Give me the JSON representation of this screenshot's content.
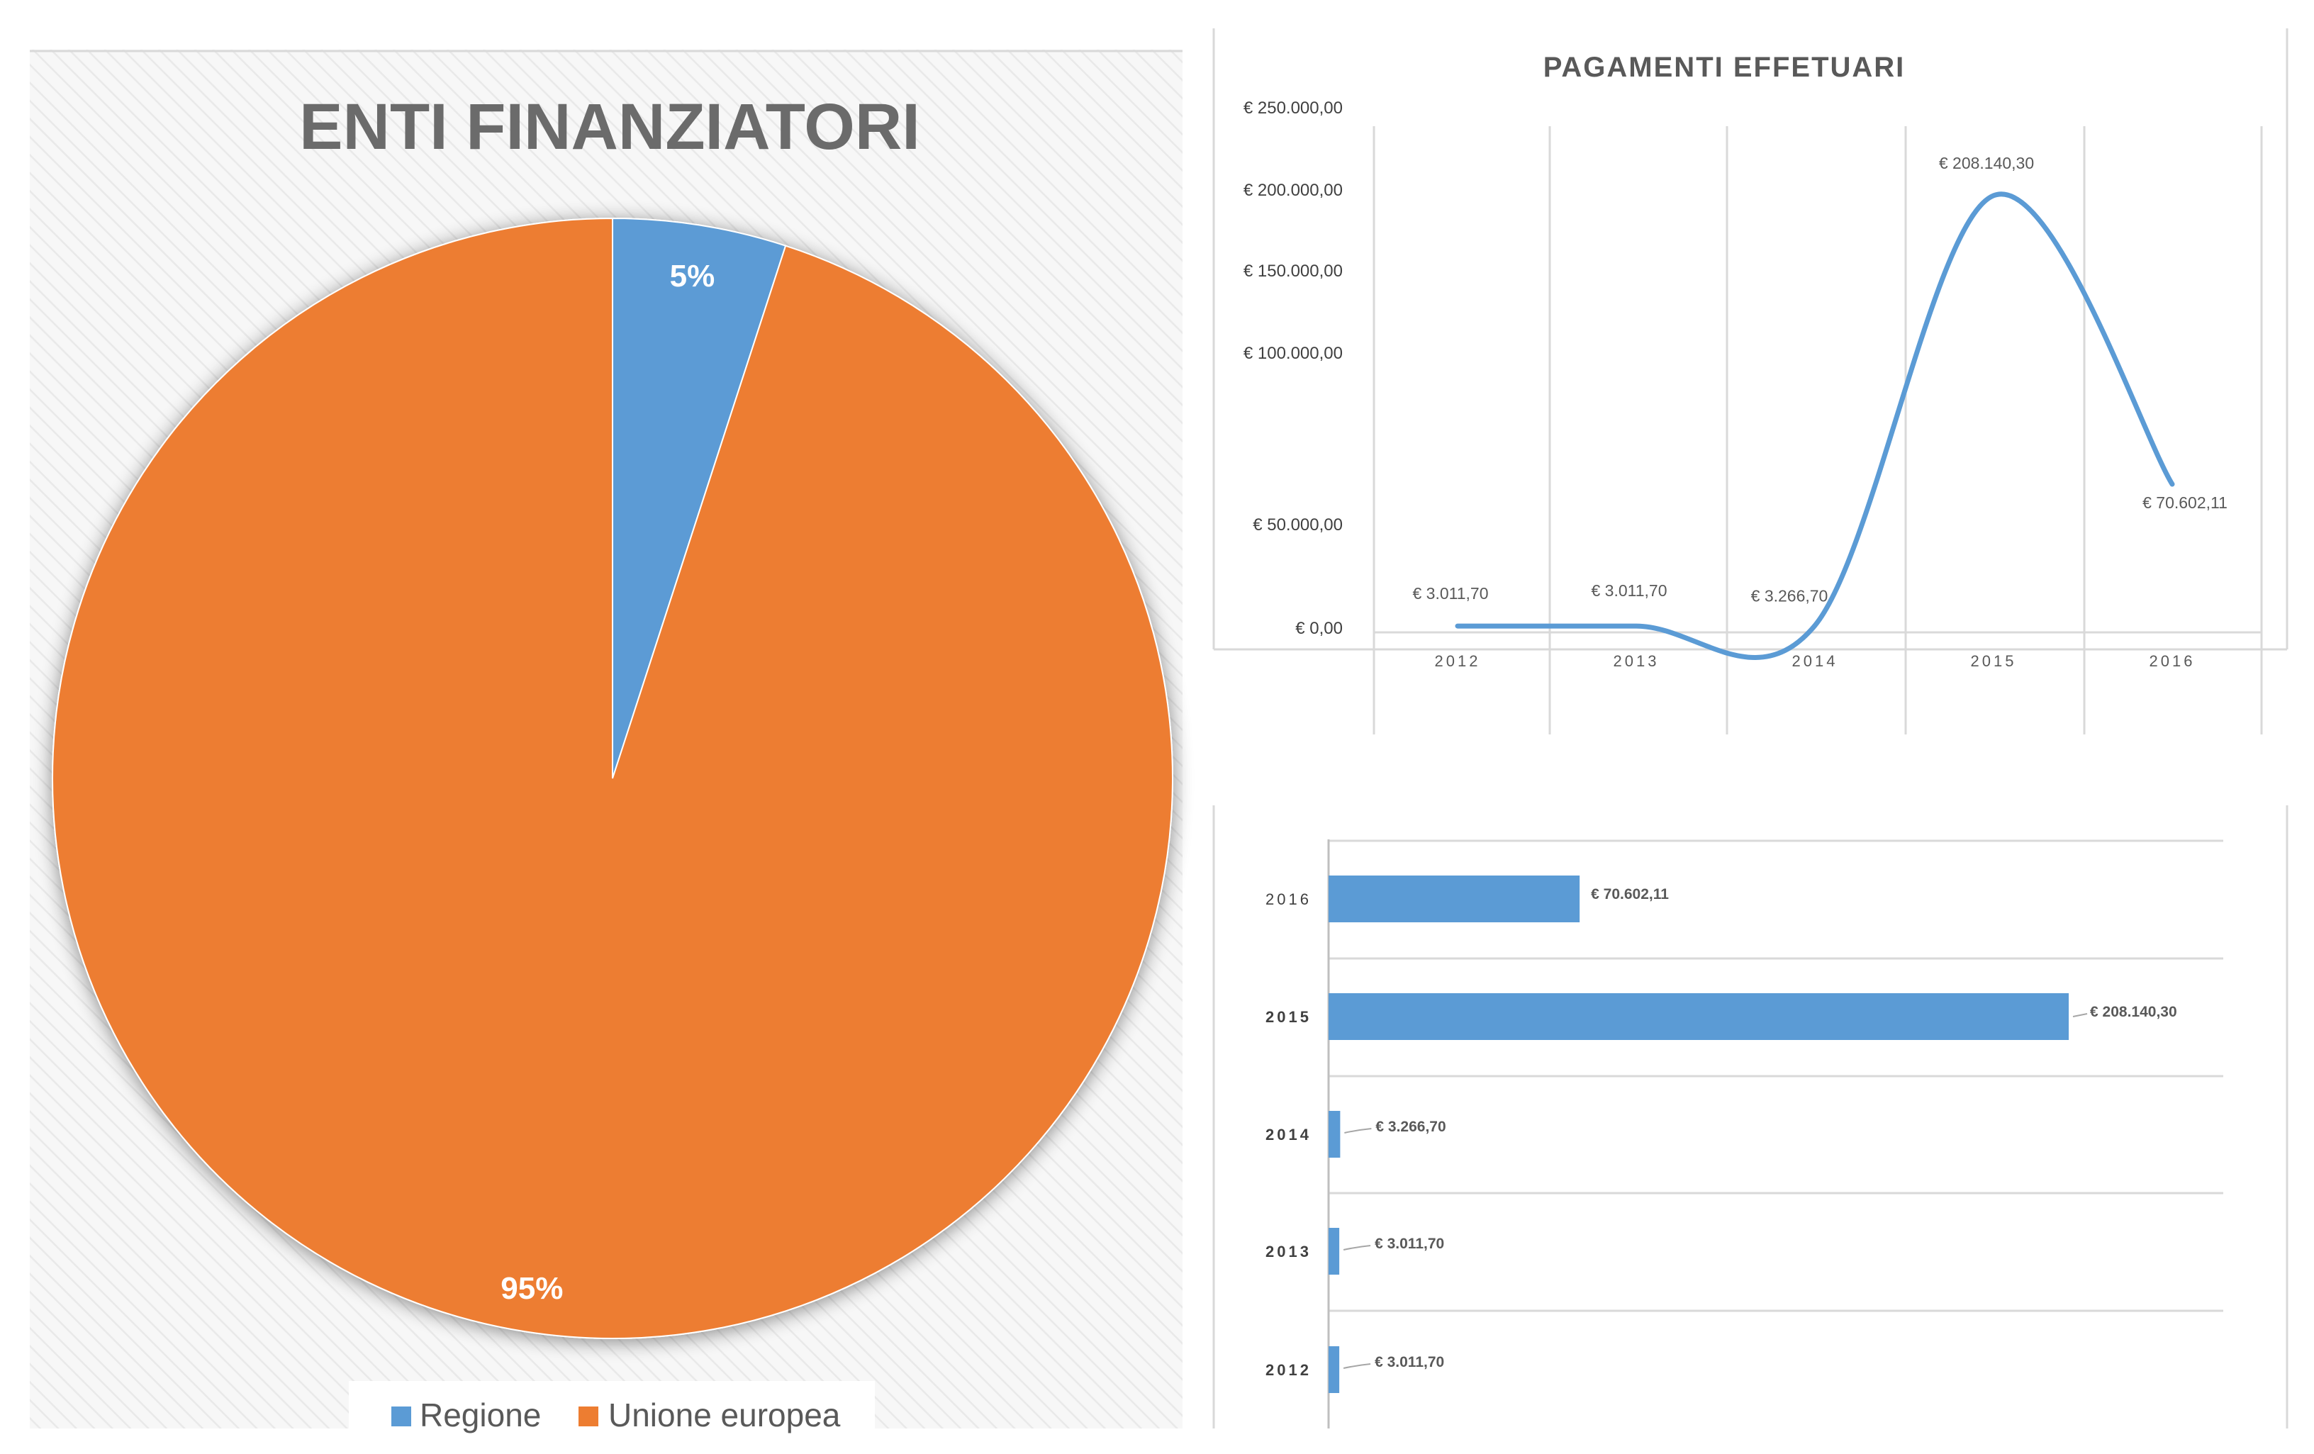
{
  "pie_panel": {
    "title": "ENTI FINANZIATORI",
    "slices": [
      {
        "label": "Regione",
        "value": 5,
        "display": "5%",
        "color": "#5b9bd5"
      },
      {
        "label": "Unione europea",
        "value": 95,
        "display": "95%",
        "color": "#ed7d31"
      }
    ],
    "legend": [
      "Regione",
      "Unione europea"
    ]
  },
  "line_panel": {
    "title": "PAGAMENTI EFFETUARI",
    "y_tick_labels": [
      "€ 250.000,00",
      "€ 200.000,00",
      "€ 150.000,00",
      "€ 100.000,00",
      "€ 50.000,00",
      "€ 0,00"
    ],
    "x_labels": [
      "2012",
      "2013",
      "2014",
      "2015",
      "2016"
    ],
    "data_labels": [
      "€ 3.011,70",
      "€ 3.011,70",
      "€ 3.266,70",
      "€ 208.140,30",
      "€ 70.602,11"
    ],
    "color": "#5b9bd5"
  },
  "bar_panel": {
    "categories": [
      "2016",
      "2015",
      "2014",
      "2013",
      "2012"
    ],
    "data_labels": [
      "€ 70.602,11",
      "€ 208.140,30",
      "€ 3.266,70",
      "€ 3.011,70",
      "€ 3.011,70"
    ],
    "color": "#5b9bd5"
  },
  "chart_data": [
    {
      "type": "pie",
      "title": "ENTI FINANZIATORI",
      "categories": [
        "Regione",
        "Unione europea"
      ],
      "values": [
        5,
        95
      ],
      "legend": "bottom"
    },
    {
      "type": "line",
      "title": "PAGAMENTI EFFETUARI",
      "x": [
        "2012",
        "2013",
        "2014",
        "2015",
        "2016"
      ],
      "values": [
        3011.7,
        3011.7,
        3266.7,
        208140.3,
        70602.11
      ],
      "ylim": [
        0,
        250000
      ],
      "grid": "vertical"
    },
    {
      "type": "bar",
      "orientation": "horizontal",
      "categories": [
        "2016",
        "2015",
        "2014",
        "2013",
        "2012"
      ],
      "values": [
        70602.11,
        208140.3,
        3266.7,
        3011.7,
        3011.7
      ],
      "grid": "horizontal"
    }
  ]
}
